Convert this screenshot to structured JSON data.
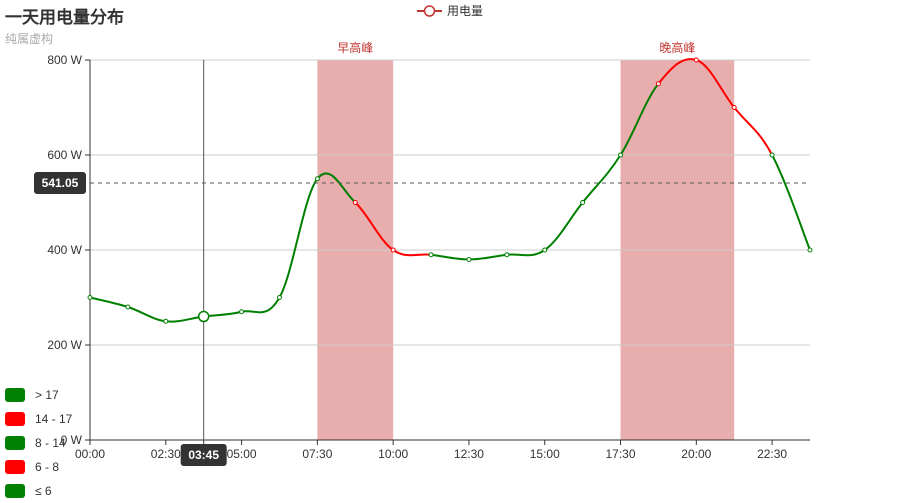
{
  "title": "一天用电量分布",
  "subtitle": "纯属虚构",
  "legend": {
    "label": "用电量",
    "color": "#c23531"
  },
  "chart_data": {
    "type": "line",
    "smooth": true,
    "x": [
      "00:00",
      "01:15",
      "02:30",
      "03:45",
      "05:00",
      "06:15",
      "07:30",
      "08:45",
      "10:00",
      "11:15",
      "12:30",
      "13:45",
      "15:00",
      "16:30",
      "17:30",
      "18:45",
      "20:00",
      "21:15",
      "22:30",
      "23:45"
    ],
    "x_tick_labels": [
      "00:00",
      "02:30",
      "03:45",
      "05:00",
      "07:30",
      "10:00",
      "12:30",
      "15:00",
      "17:30",
      "20:00",
      "22:30"
    ],
    "series": [
      {
        "name": "用电量",
        "values": [
          300,
          280,
          250,
          260,
          270,
          300,
          550,
          500,
          400,
          390,
          380,
          390,
          400,
          500,
          600,
          750,
          800,
          700,
          600,
          400
        ]
      }
    ],
    "ylim": [
      0,
      800
    ],
    "y_ticks": [
      0,
      200,
      400,
      600,
      800
    ],
    "y_tick_labels": [
      "0 W",
      "200 W",
      "400 W",
      "600 W",
      "800 W"
    ],
    "grid": true,
    "visual_map": {
      "dimension": "x index",
      "pieces": [
        {
          "label": "≤ 6",
          "lte": 6,
          "color": "#008000"
        },
        {
          "label": "6 - 8",
          "gt": 6,
          "lte": 8,
          "color": "#ff0000"
        },
        {
          "label": "8 - 14",
          "gt": 8,
          "lte": 14,
          "color": "#008000"
        },
        {
          "label": "14 - 17",
          "gt": 14,
          "lte": 17,
          "color": "#ff0000"
        },
        {
          "label": "> 17",
          "gt": 17,
          "color": "#008000"
        }
      ]
    },
    "mark_areas": [
      {
        "label": "早高峰",
        "from": "07:30",
        "to": "10:00",
        "color": "#e8adad"
      },
      {
        "label": "晚高峰",
        "from": "17:30",
        "to": "21:15",
        "color": "#e8adad"
      }
    ],
    "tooltip": {
      "x_label": "03:45",
      "y_label": "541.05",
      "y_value": 541.05,
      "x_value": "03:45",
      "highlighted_index": 3
    }
  },
  "vmap_display": [
    "> 17",
    "14 - 17",
    "8 - 14",
    "6 - 8",
    "≤ 6"
  ],
  "vmap_colors": [
    "#008000",
    "#ff0000",
    "#008000",
    "#ff0000",
    "#008000"
  ]
}
